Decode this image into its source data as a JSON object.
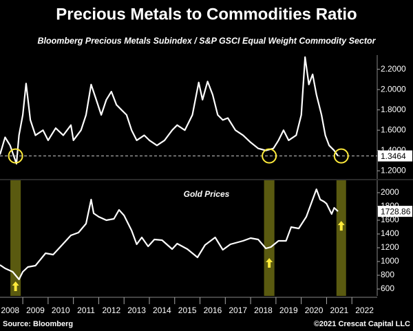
{
  "chart_data": [
    {
      "type": "line",
      "title": "Precious Metals to Commodities Ratio",
      "subtitle": "Bloomberg Precious Metals Subindex / S&P GSCI Equal Weight Commodity Sector",
      "x": [
        2008.1,
        2008.3,
        2008.5,
        2008.75,
        2008.85,
        2009.0,
        2009.13,
        2009.3,
        2009.5,
        2009.8,
        2010.0,
        2010.3,
        2010.6,
        2010.9,
        2011.0,
        2011.3,
        2011.5,
        2011.7,
        2011.9,
        2012.1,
        2012.3,
        2012.5,
        2012.7,
        2012.9,
        2013.1,
        2013.3,
        2013.5,
        2013.8,
        2014.0,
        2014.3,
        2014.6,
        2014.9,
        2015.1,
        2015.4,
        2015.7,
        2015.95,
        2016.1,
        2016.3,
        2016.5,
        2016.7,
        2016.9,
        2017.1,
        2017.4,
        2017.7,
        2018.0,
        2018.3,
        2018.6,
        2018.9,
        2019.1,
        2019.3,
        2019.5,
        2019.8,
        2020.0,
        2020.15,
        2020.3,
        2020.45,
        2020.6,
        2020.8,
        2020.95,
        2021.1,
        2021.3,
        2021.45
      ],
      "series": [
        {
          "name": "Ratio",
          "color": "#ffffff",
          "values": [
            1.36,
            1.53,
            1.45,
            1.27,
            1.55,
            1.75,
            2.06,
            1.7,
            1.55,
            1.6,
            1.5,
            1.62,
            1.55,
            1.65,
            1.5,
            1.6,
            1.75,
            2.05,
            1.9,
            1.75,
            1.9,
            1.98,
            1.85,
            1.8,
            1.75,
            1.6,
            1.5,
            1.55,
            1.5,
            1.45,
            1.5,
            1.6,
            1.65,
            1.6,
            1.75,
            2.07,
            1.9,
            2.08,
            1.95,
            1.75,
            1.7,
            1.72,
            1.6,
            1.55,
            1.48,
            1.42,
            1.4,
            1.42,
            1.5,
            1.6,
            1.5,
            1.55,
            1.75,
            2.32,
            2.05,
            2.15,
            1.95,
            1.75,
            1.55,
            1.45,
            1.4,
            1.3464
          ]
        }
      ],
      "reference_line": 1.3464,
      "ylim": [
        1.12,
        2.34
      ],
      "yticks": [
        {
          "value": 1.2,
          "label": "1.2000"
        },
        {
          "value": 1.4,
          "label": "1.4000"
        },
        {
          "value": 1.6,
          "label": "1.6000"
        },
        {
          "value": 1.8,
          "label": "1.8000"
        },
        {
          "value": 2.0,
          "label": "2.0000"
        },
        {
          "value": 2.2,
          "label": "2.2000"
        }
      ]
    },
    {
      "type": "line",
      "annotation": "Gold Prices",
      "x": [
        2008.1,
        2008.3,
        2008.6,
        2008.85,
        2009.0,
        2009.2,
        2009.5,
        2009.9,
        2010.2,
        2010.5,
        2010.9,
        2011.2,
        2011.5,
        2011.7,
        2011.8,
        2012.0,
        2012.3,
        2012.6,
        2012.8,
        2013.0,
        2013.3,
        2013.5,
        2013.7,
        2013.95,
        2014.2,
        2014.5,
        2014.9,
        2015.1,
        2015.5,
        2015.9,
        2016.2,
        2016.6,
        2016.9,
        2017.2,
        2017.7,
        2018.0,
        2018.3,
        2018.6,
        2018.8,
        2019.1,
        2019.4,
        2019.6,
        2019.9,
        2020.2,
        2020.6,
        2020.75,
        2020.9,
        2021.0,
        2021.2,
        2021.3,
        2021.45
      ],
      "series": [
        {
          "name": "Gold",
          "color": "#ffffff",
          "values": [
            950,
            900,
            850,
            740,
            850,
            920,
            940,
            1120,
            1100,
            1220,
            1380,
            1420,
            1550,
            1900,
            1700,
            1650,
            1600,
            1620,
            1750,
            1670,
            1450,
            1250,
            1350,
            1220,
            1320,
            1310,
            1180,
            1260,
            1180,
            1060,
            1240,
            1350,
            1170,
            1250,
            1300,
            1340,
            1320,
            1190,
            1210,
            1300,
            1300,
            1500,
            1480,
            1650,
            2050,
            1900,
            1870,
            1840,
            1690,
            1780,
            1728.86
          ]
        }
      ],
      "ylim": [
        500,
        2180
      ],
      "yticks": [
        600,
        800,
        1000,
        1200,
        1400,
        1600,
        1800,
        2000
      ],
      "highlights": [
        {
          "start": 2008.51,
          "end": 2008.92,
          "color": "#5a5a10"
        },
        {
          "start": 2018.53,
          "end": 2018.94,
          "color": "#5a5a10"
        },
        {
          "start": 2021.39,
          "end": 2021.77,
          "color": "#5a5a10"
        }
      ],
      "xlim": [
        2008.1,
        2023.0
      ],
      "xticks": [
        2008,
        2009,
        2010,
        2011,
        2012,
        2013,
        2014,
        2015,
        2016,
        2017,
        2018,
        2019,
        2020,
        2021,
        2022
      ]
    }
  ],
  "footer": {
    "source": "Source: Bloomberg",
    "copyright": "©2021 Crescat Capital LLC"
  }
}
